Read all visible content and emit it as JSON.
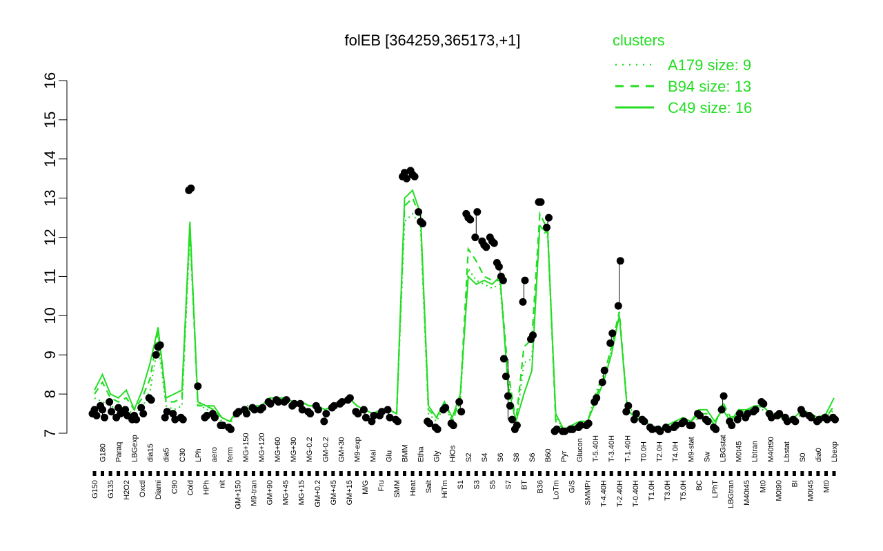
{
  "chart_data": {
    "type": "line",
    "title": "folEB [364259,365173,+1]",
    "xlabel": "",
    "ylabel": "",
    "ylim": [
      7,
      16
    ],
    "yticks": [
      7,
      8,
      9,
      10,
      11,
      12,
      13,
      14,
      15,
      16
    ],
    "grid": false,
    "legend_position": "top-right",
    "legend_title": "clusters",
    "legend": [
      {
        "name": "A179 size: 9",
        "style": "dotted"
      },
      {
        "name": "B94 size: 13",
        "style": "dashed"
      },
      {
        "name": "C49 size: 16",
        "style": "solid"
      }
    ],
    "x_tick_labels": [
      "G150",
      "G180",
      "G135",
      "Paraq",
      "H2O2",
      "LBGexp",
      "Oxctl",
      "dia15",
      "Diami",
      "dia5",
      "C90",
      "C30",
      "Cold",
      "LPh",
      "HPh",
      "aero",
      "nit",
      "ferm",
      "GM+150",
      "MG+150",
      "M9-tran",
      "MG+120",
      "GM+90",
      "MG+60",
      "MG+45",
      "MG+30",
      "MG+15",
      "MG-0.2",
      "GM+0.2",
      "GM-0.2",
      "GM+45",
      "GM+30",
      "GM+15",
      "M9-exp",
      "M/G",
      "Mal",
      "Fru",
      "Glu",
      "SMM",
      "BMM",
      "Heat",
      "Etha",
      "Salt",
      "Gly",
      "HiTm",
      "HiOs",
      "S1",
      "S2",
      "S3",
      "S4",
      "S5",
      "S6",
      "S7",
      "S8",
      "BT",
      "S6",
      "B36",
      "B60",
      "LoTm",
      "Pyr",
      "G/S",
      "Glucon",
      "SMMPr",
      "T-5.40H",
      "T-4.40H",
      "T-3.40H",
      "T-2.40H",
      "T-1.40H",
      "T-0.40H",
      "T0.0H",
      "T1.0H",
      "T2.0H",
      "T3.0H",
      "T4.0H",
      "T5.0H",
      "M9-stat",
      "BC",
      "Sw",
      "LPhT",
      "LBGstat",
      "LBGtran",
      "M0t45",
      "M40t45",
      "Lbtran",
      "Mt0",
      "M40t90",
      "M0t90",
      "Lbstat",
      "BI",
      "S0",
      "M0t45",
      "dia0",
      "Mt0",
      "Lbexp"
    ],
    "point_groups": [
      [
        7.5,
        7.6,
        7.45
      ],
      [
        7.7,
        7.6,
        7.4
      ],
      [
        7.8,
        7.55
      ],
      [
        7.4,
        7.65,
        7.5
      ],
      [
        7.6,
        7.45
      ],
      [
        7.35,
        7.45,
        7.35
      ],
      [
        7.65,
        7.5
      ],
      [
        7.9,
        7.85
      ],
      [
        9.0,
        9.2,
        9.25
      ],
      [
        7.4,
        7.55
      ],
      [
        7.5,
        7.35
      ],
      [
        7.4,
        7.35
      ],
      [
        13.2,
        13.25
      ],
      [
        8.2
      ],
      [
        7.4,
        7.45
      ],
      [
        7.5,
        7.4
      ],
      [
        7.2,
        7.2
      ],
      [
        7.15,
        7.1
      ],
      [
        7.5,
        7.55
      ],
      [
        7.6,
        7.5
      ],
      [
        7.65,
        7.6
      ],
      [
        7.6,
        7.65
      ],
      [
        7.8,
        7.75
      ],
      [
        7.85,
        7.8
      ],
      [
        7.8,
        7.85
      ],
      [
        7.7,
        7.75
      ],
      [
        7.75,
        7.6
      ],
      [
        7.55,
        7.5
      ],
      [
        7.7,
        7.6
      ],
      [
        7.3,
        7.5
      ],
      [
        7.65,
        7.7
      ],
      [
        7.75,
        7.8
      ],
      [
        7.85,
        7.9
      ],
      [
        7.55,
        7.5
      ],
      [
        7.6,
        7.4
      ],
      [
        7.3,
        7.45
      ],
      [
        7.45,
        7.55
      ],
      [
        7.6,
        7.4
      ],
      [
        7.35,
        7.3
      ],
      [
        13.55,
        13.65,
        13.5
      ],
      [
        13.7,
        13.6,
        13.55
      ],
      [
        12.65,
        12.4,
        12.35
      ],
      [
        7.3,
        7.25
      ],
      [
        7.15,
        7.1
      ],
      [
        7.6,
        7.65
      ],
      [
        7.25,
        7.2
      ],
      [
        7.8,
        7.55
      ],
      [
        12.6,
        12.5,
        12.45
      ],
      [
        12.0,
        12.65
      ],
      [
        11.9,
        11.8,
        11.75
      ],
      [
        12.0,
        11.9,
        11.85
      ],
      [
        11.35,
        11.25,
        11.0,
        10.9
      ],
      [
        8.9,
        8.45,
        7.95,
        7.7,
        7.35
      ],
      [
        7.1,
        7.2
      ],
      [
        10.35,
        10.9
      ],
      [
        9.4,
        9.5
      ],
      [
        12.9,
        12.9
      ],
      [
        12.25,
        12.5
      ],
      [
        7.05,
        7.1
      ],
      [
        7.05,
        7.05
      ],
      [
        7.1,
        7.1
      ],
      [
        7.15,
        7.2
      ],
      [
        7.2,
        7.25
      ],
      [
        7.8,
        7.9
      ],
      [
        8.3,
        8.6
      ],
      [
        9.3,
        9.55
      ],
      [
        10.25,
        11.4
      ],
      [
        7.55,
        7.7
      ],
      [
        7.35,
        7.5
      ],
      [
        7.35,
        7.3
      ],
      [
        7.15,
        7.1
      ],
      [
        7.1,
        7.05
      ],
      [
        7.15,
        7.1
      ],
      [
        7.15,
        7.2
      ],
      [
        7.25,
        7.3
      ],
      [
        7.2,
        7.2
      ],
      [
        7.5,
        7.45
      ],
      [
        7.35,
        7.3
      ],
      [
        7.15,
        7.1
      ],
      [
        7.6,
        7.95
      ],
      [
        7.3,
        7.2
      ],
      [
        7.35,
        7.5
      ],
      [
        7.4,
        7.5
      ],
      [
        7.55,
        7.6
      ],
      [
        7.8,
        7.75
      ],
      [
        7.5,
        7.4
      ],
      [
        7.45,
        7.5
      ],
      [
        7.4,
        7.3
      ],
      [
        7.35,
        7.3
      ],
      [
        7.6,
        7.5
      ],
      [
        7.45,
        7.4
      ],
      [
        7.3,
        7.35
      ],
      [
        7.4,
        7.35
      ],
      [
        7.4,
        7.35
      ]
    ],
    "series": [
      {
        "name": "A179 size: 9",
        "values": [
          7.9,
          7.8,
          7.7,
          7.6,
          7.6,
          7.5,
          7.65,
          8.1,
          9.3,
          7.7,
          7.6,
          7.7,
          12.1,
          7.8,
          7.6,
          7.6,
          7.3,
          7.2,
          7.6,
          7.7,
          7.7,
          7.7,
          7.8,
          7.9,
          7.9,
          7.8,
          7.8,
          7.7,
          7.7,
          7.6,
          7.7,
          7.8,
          7.9,
          7.7,
          7.6,
          7.5,
          7.6,
          7.6,
          7.5,
          12.4,
          12.6,
          12.3,
          7.5,
          7.3,
          7.7,
          7.3,
          7.8,
          11.2,
          10.9,
          10.8,
          10.7,
          10.8,
          8.4,
          7.2,
          8.8,
          8.9,
          12.3,
          12.0,
          7.4,
          7.1,
          7.1,
          7.3,
          7.3,
          8.0,
          8.5,
          9.1,
          10.0,
          7.7,
          7.5,
          7.3,
          7.2,
          7.1,
          7.2,
          7.2,
          7.3,
          7.2,
          7.4,
          7.4,
          7.2,
          7.7,
          7.3,
          7.5,
          7.5,
          7.6,
          7.6,
          7.4,
          7.4,
          7.3,
          7.3,
          7.5,
          7.4,
          7.3,
          7.4,
          7.6
        ]
      },
      {
        "name": "B94 size: 13",
        "values": [
          8.0,
          8.3,
          7.9,
          7.8,
          7.9,
          7.6,
          7.9,
          8.4,
          9.6,
          7.8,
          7.8,
          7.9,
          12.3,
          7.7,
          7.7,
          7.6,
          7.4,
          7.3,
          7.5,
          7.6,
          7.6,
          7.7,
          7.8,
          7.9,
          7.9,
          7.8,
          7.8,
          7.7,
          7.7,
          7.6,
          7.7,
          7.8,
          7.9,
          7.7,
          7.6,
          7.5,
          7.6,
          7.6,
          7.5,
          12.8,
          13.0,
          12.5,
          7.6,
          7.4,
          7.8,
          7.3,
          7.9,
          11.7,
          11.4,
          11.0,
          10.9,
          10.9,
          8.6,
          7.3,
          9.2,
          9.4,
          12.6,
          12.2,
          7.3,
          7.1,
          7.2,
          7.3,
          7.3,
          7.9,
          8.4,
          9.2,
          10.1,
          7.6,
          7.4,
          7.3,
          7.2,
          7.1,
          7.2,
          7.3,
          7.3,
          7.3,
          7.5,
          7.5,
          7.2,
          7.8,
          7.4,
          7.5,
          7.6,
          7.6,
          7.7,
          7.5,
          7.4,
          7.4,
          7.4,
          7.6,
          7.4,
          7.4,
          7.4,
          7.7
        ]
      },
      {
        "name": "C49 size: 16",
        "values": [
          8.1,
          8.5,
          8.0,
          7.9,
          8.1,
          7.6,
          8.1,
          8.8,
          9.7,
          7.9,
          8.0,
          8.1,
          12.4,
          7.8,
          7.7,
          7.7,
          7.4,
          7.3,
          7.6,
          7.6,
          7.7,
          7.7,
          7.9,
          7.9,
          7.9,
          7.8,
          7.8,
          7.7,
          7.7,
          7.6,
          7.7,
          7.8,
          7.9,
          7.7,
          7.6,
          7.5,
          7.6,
          7.6,
          7.5,
          13.0,
          13.2,
          12.6,
          7.7,
          7.4,
          7.8,
          7.4,
          8.0,
          11.0,
          10.8,
          10.9,
          10.8,
          11.0,
          8.2,
          7.3,
          8.0,
          8.6,
          12.3,
          12.1,
          7.5,
          7.1,
          7.2,
          7.3,
          7.3,
          7.8,
          8.3,
          9.0,
          10.0,
          7.6,
          7.4,
          7.3,
          7.2,
          7.1,
          7.2,
          7.3,
          7.4,
          7.3,
          7.6,
          7.6,
          7.3,
          7.6,
          7.3,
          7.6,
          7.6,
          7.7,
          7.7,
          7.5,
          7.5,
          7.4,
          7.4,
          7.6,
          7.5,
          7.4,
          7.5,
          7.9
        ]
      }
    ],
    "colors": {
      "series": "#22dd22",
      "points": "#000000",
      "axis": "#000000"
    }
  }
}
